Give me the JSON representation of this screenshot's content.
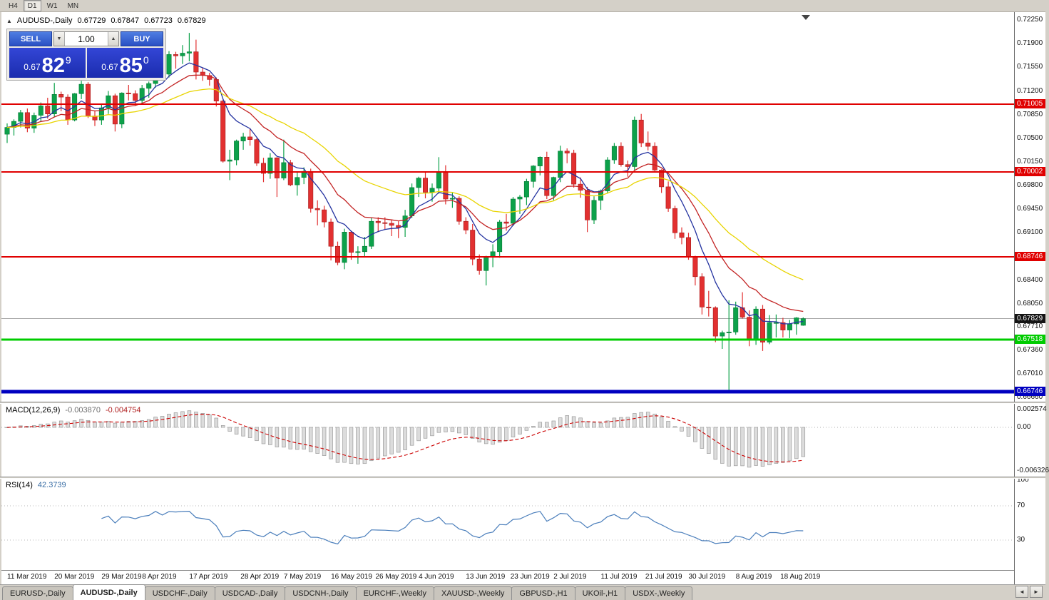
{
  "toolbar": {
    "periods": [
      {
        "label": "H4",
        "active": false
      },
      {
        "label": "D1",
        "active": true
      },
      {
        "label": "W1",
        "active": false
      },
      {
        "label": "MN",
        "active": false
      }
    ]
  },
  "chart_header": {
    "collapse_arrow": "▲",
    "title": "AUDUSD-,Daily",
    "open": "0.67729",
    "high": "0.67847",
    "low": "0.67723",
    "close": "0.67829"
  },
  "trade_panel": {
    "sell_label": "SELL",
    "buy_label": "BUY",
    "volume": "1.00",
    "icons": {
      "up": "▲",
      "down": "▼"
    },
    "sell_price_prefix": "0.67",
    "sell_price_big": "82",
    "sell_price_sup": "9",
    "buy_price_prefix": "0.67",
    "buy_price_big": "85",
    "buy_price_sup": "0"
  },
  "chart_data": {
    "type": "candlestick",
    "symbol": "AUDUSD-",
    "timeframe": "Daily",
    "colors": {
      "up": "#0ca14a",
      "down": "#e23030",
      "up_border": "#077a36",
      "down_border": "#a31c1c",
      "background": "#ffffff"
    },
    "price_axis_labels": [
      "0.72250",
      "0.71900",
      "0.71550",
      "0.71200",
      "0.70850",
      "0.70500",
      "0.70150",
      "0.69800",
      "0.69450",
      "0.69100",
      "0.68400",
      "0.68050",
      "0.67710",
      "0.67360",
      "0.67010",
      "0.66660"
    ],
    "horizontal_lines": [
      {
        "price": 0.71005,
        "label": "0.71005",
        "color": "#e00000",
        "thickness": 2
      },
      {
        "price": 0.70002,
        "label": "0.70002",
        "color": "#e00000",
        "thickness": 2
      },
      {
        "price": 0.68746,
        "label": "0.68746",
        "color": "#e00000",
        "thickness": 2
      },
      {
        "price": 0.67518,
        "label": "0.67518",
        "color": "#00cc00",
        "thickness": 3
      },
      {
        "price": 0.66746,
        "label": "0.66746",
        "color": "#0000c0",
        "thickness": 5
      }
    ],
    "bid_price": {
      "value": 0.67829,
      "label": "0.67829"
    },
    "moving_averages": [
      {
        "method": "ema",
        "period": 7,
        "color": "#2433a0"
      },
      {
        "method": "ema",
        "period": 14,
        "color": "#c22222"
      },
      {
        "method": "ema",
        "period": 30,
        "color": "#e8d400"
      }
    ],
    "date_labels": [
      {
        "text": "11 Mar 2019",
        "bar": 0
      },
      {
        "text": "20 Mar 2019",
        "bar": 7
      },
      {
        "text": "29 Mar 2019",
        "bar": 14
      },
      {
        "text": "8 Apr 2019",
        "bar": 20
      },
      {
        "text": "17 Apr 2019",
        "bar": 27
      },
      {
        "text": "28 Apr 2019",
        "bar": 34.6
      },
      {
        "text": "7 May 2019",
        "bar": 41
      },
      {
        "text": "16 May 2019",
        "bar": 48
      },
      {
        "text": "26 May 2019",
        "bar": 54.6
      },
      {
        "text": "4 Jun 2019",
        "bar": 61
      },
      {
        "text": "13 Jun 2019",
        "bar": 68
      },
      {
        "text": "23 Jun 2019",
        "bar": 74.6
      },
      {
        "text": "2 Jul 2019",
        "bar": 81
      },
      {
        "text": "11 Jul 2019",
        "bar": 88
      },
      {
        "text": "21 Jul 2019",
        "bar": 94.6
      },
      {
        "text": "30 Jul 2019",
        "bar": 101
      },
      {
        "text": "8 Aug 2019",
        "bar": 108
      },
      {
        "text": "18 Aug 2019",
        "bar": 114.6
      }
    ],
    "candles": [
      [
        0.7056,
        0.7072,
        0.7043,
        0.7066
      ],
      [
        0.7066,
        0.7078,
        0.7054,
        0.7075
      ],
      [
        0.7075,
        0.7092,
        0.7066,
        0.7088
      ],
      [
        0.7088,
        0.7094,
        0.7059,
        0.7065
      ],
      [
        0.7065,
        0.7088,
        0.7058,
        0.7084
      ],
      [
        0.7084,
        0.7103,
        0.7075,
        0.7098
      ],
      [
        0.7098,
        0.711,
        0.7079,
        0.7086
      ],
      [
        0.7086,
        0.7132,
        0.7082,
        0.7115
      ],
      [
        0.7115,
        0.7119,
        0.709,
        0.7111
      ],
      [
        0.7111,
        0.7115,
        0.707,
        0.7077
      ],
      [
        0.7077,
        0.7117,
        0.7075,
        0.7116
      ],
      [
        0.7116,
        0.7135,
        0.7108,
        0.713
      ],
      [
        0.713,
        0.7133,
        0.708,
        0.7083
      ],
      [
        0.7083,
        0.709,
        0.7068,
        0.7077
      ],
      [
        0.7077,
        0.71,
        0.707,
        0.7095
      ],
      [
        0.7095,
        0.712,
        0.7086,
        0.7113
      ],
      [
        0.7113,
        0.7116,
        0.706,
        0.7071
      ],
      [
        0.7071,
        0.7118,
        0.7065,
        0.7117
      ],
      [
        0.7117,
        0.7129,
        0.7106,
        0.7116
      ],
      [
        0.7116,
        0.7121,
        0.7098,
        0.7106
      ],
      [
        0.7106,
        0.7129,
        0.7101,
        0.7124
      ],
      [
        0.7124,
        0.7134,
        0.711,
        0.7131
      ],
      [
        0.7131,
        0.7168,
        0.7125,
        0.7164
      ],
      [
        0.7164,
        0.7174,
        0.7138,
        0.7145
      ],
      [
        0.7145,
        0.7179,
        0.714,
        0.7174
      ],
      [
        0.7174,
        0.7178,
        0.7153,
        0.7172
      ],
      [
        0.7172,
        0.7188,
        0.716,
        0.7176
      ],
      [
        0.7176,
        0.7206,
        0.7164,
        0.7178
      ],
      [
        0.7178,
        0.7196,
        0.7137,
        0.7148
      ],
      [
        0.7148,
        0.7154,
        0.7135,
        0.7143
      ],
      [
        0.7143,
        0.7147,
        0.7128,
        0.7137
      ],
      [
        0.7137,
        0.714,
        0.7097,
        0.7105
      ],
      [
        0.7105,
        0.7107,
        0.7014,
        0.7016
      ],
      [
        0.7016,
        0.7033,
        0.6988,
        0.7018
      ],
      [
        0.7018,
        0.7048,
        0.701,
        0.7046
      ],
      [
        0.7046,
        0.7058,
        0.7033,
        0.7052
      ],
      [
        0.7052,
        0.7064,
        0.7039,
        0.7048
      ],
      [
        0.7048,
        0.705,
        0.7009,
        0.7013
      ],
      [
        0.7013,
        0.7021,
        0.6985,
        0.6998
      ],
      [
        0.6998,
        0.7028,
        0.699,
        0.7021
      ],
      [
        0.7021,
        0.7022,
        0.6963,
        0.6991
      ],
      [
        0.6991,
        0.7048,
        0.6988,
        0.7014
      ],
      [
        0.7014,
        0.7018,
        0.6979,
        0.6981
      ],
      [
        0.6981,
        0.7,
        0.6965,
        0.6992
      ],
      [
        0.6992,
        0.7007,
        0.6982,
        0.7001
      ],
      [
        0.7001,
        0.7005,
        0.694,
        0.6946
      ],
      [
        0.6946,
        0.6958,
        0.6921,
        0.6944
      ],
      [
        0.6944,
        0.695,
        0.6918,
        0.6926
      ],
      [
        0.6926,
        0.6931,
        0.6869,
        0.689
      ],
      [
        0.689,
        0.6897,
        0.6862,
        0.6866
      ],
      [
        0.6866,
        0.6916,
        0.6856,
        0.6911
      ],
      [
        0.6911,
        0.6913,
        0.687,
        0.6881
      ],
      [
        0.6881,
        0.689,
        0.6864,
        0.6882
      ],
      [
        0.6882,
        0.6904,
        0.6875,
        0.689
      ],
      [
        0.689,
        0.6932,
        0.6886,
        0.6927
      ],
      [
        0.6927,
        0.6933,
        0.6911,
        0.6925
      ],
      [
        0.6925,
        0.6933,
        0.6915,
        0.6924
      ],
      [
        0.6924,
        0.6929,
        0.6905,
        0.6921
      ],
      [
        0.6921,
        0.6927,
        0.6902,
        0.6918
      ],
      [
        0.6918,
        0.6944,
        0.6904,
        0.6935
      ],
      [
        0.6935,
        0.6983,
        0.6932,
        0.6977
      ],
      [
        0.6977,
        0.6993,
        0.6963,
        0.6991
      ],
      [
        0.6991,
        0.7,
        0.6961,
        0.697
      ],
      [
        0.697,
        0.6983,
        0.6956,
        0.6976
      ],
      [
        0.6976,
        0.7022,
        0.6968,
        0.7
      ],
      [
        0.7,
        0.701,
        0.6952,
        0.696
      ],
      [
        0.696,
        0.697,
        0.6947,
        0.6961
      ],
      [
        0.6961,
        0.6964,
        0.6922,
        0.6927
      ],
      [
        0.6927,
        0.6933,
        0.6908,
        0.6914
      ],
      [
        0.6914,
        0.6923,
        0.6862,
        0.6871
      ],
      [
        0.6871,
        0.6878,
        0.6848,
        0.6854
      ],
      [
        0.6854,
        0.6876,
        0.6832,
        0.6875
      ],
      [
        0.6875,
        0.6893,
        0.6859,
        0.6882
      ],
      [
        0.6882,
        0.6929,
        0.6873,
        0.6926
      ],
      [
        0.6926,
        0.6938,
        0.6913,
        0.6924
      ],
      [
        0.6924,
        0.6963,
        0.692,
        0.696
      ],
      [
        0.696,
        0.6966,
        0.6938,
        0.6963
      ],
      [
        0.6963,
        0.699,
        0.6951,
        0.6986
      ],
      [
        0.6986,
        0.701,
        0.6977,
        0.7009
      ],
      [
        0.7009,
        0.7023,
        0.6995,
        0.7022
      ],
      [
        0.7022,
        0.703,
        0.696,
        0.6965
      ],
      [
        0.6965,
        0.6993,
        0.6958,
        0.6992
      ],
      [
        0.6992,
        0.7039,
        0.6985,
        0.7031
      ],
      [
        0.7031,
        0.7035,
        0.7013,
        0.7028
      ],
      [
        0.7028,
        0.7033,
        0.6977,
        0.6982
      ],
      [
        0.6982,
        0.6992,
        0.6962,
        0.6973
      ],
      [
        0.6973,
        0.6978,
        0.6911,
        0.6929
      ],
      [
        0.6929,
        0.6964,
        0.6923,
        0.6958
      ],
      [
        0.6958,
        0.6974,
        0.6944,
        0.6972
      ],
      [
        0.6972,
        0.7022,
        0.6968,
        0.7018
      ],
      [
        0.7018,
        0.7043,
        0.7012,
        0.7038
      ],
      [
        0.7038,
        0.7044,
        0.7008,
        0.7011
      ],
      [
        0.7011,
        0.7017,
        0.6993,
        0.7008
      ],
      [
        0.7008,
        0.7082,
        0.7003,
        0.7077
      ],
      [
        0.7077,
        0.7086,
        0.7037,
        0.7043
      ],
      [
        0.7043,
        0.706,
        0.7032,
        0.7038
      ],
      [
        0.7038,
        0.7044,
        0.7,
        0.7003
      ],
      [
        0.7003,
        0.7004,
        0.6969,
        0.6978
      ],
      [
        0.6978,
        0.6986,
        0.6941,
        0.6946
      ],
      [
        0.6946,
        0.695,
        0.6901,
        0.691
      ],
      [
        0.691,
        0.6918,
        0.6893,
        0.6903
      ],
      [
        0.6903,
        0.691,
        0.687,
        0.6874
      ],
      [
        0.6874,
        0.6876,
        0.6832,
        0.6845
      ],
      [
        0.6845,
        0.685,
        0.6789,
        0.68
      ],
      [
        0.68,
        0.6824,
        0.6786,
        0.6799
      ],
      [
        0.6799,
        0.6801,
        0.6748,
        0.6757
      ],
      [
        0.6757,
        0.6765,
        0.6738,
        0.6762
      ],
      [
        0.6762,
        0.681,
        0.6677,
        0.6763
      ],
      [
        0.6763,
        0.6808,
        0.6759,
        0.6799
      ],
      [
        0.6799,
        0.6822,
        0.6783,
        0.6785
      ],
      [
        0.6785,
        0.6795,
        0.6742,
        0.6753
      ],
      [
        0.6753,
        0.6801,
        0.6744,
        0.6797
      ],
      [
        0.6797,
        0.6803,
        0.6735,
        0.6748
      ],
      [
        0.6748,
        0.6788,
        0.6745,
        0.6777
      ],
      [
        0.6777,
        0.6789,
        0.6755,
        0.6777
      ],
      [
        0.6777,
        0.6784,
        0.6755,
        0.6766
      ],
      [
        0.6766,
        0.6781,
        0.6754,
        0.6775
      ],
      [
        0.6775,
        0.6785,
        0.6759,
        0.6784
      ],
      [
        0.67729,
        0.67847,
        0.67723,
        0.67829
      ]
    ]
  },
  "macd": {
    "name": "MACD(12,26,9)",
    "value_main": "-0.003870",
    "value_signal": "-0.004754",
    "fast": 12,
    "slow": 26,
    "signal": 9,
    "axis_labels": [
      "0.002574",
      "0.00",
      "-0.006326"
    ]
  },
  "rsi": {
    "name": "RSI(14)",
    "value": "42.3739",
    "period": 14,
    "levels": [
      70,
      30
    ],
    "axis_labels": [
      "100",
      "70",
      "30"
    ]
  },
  "tabs": {
    "scroll_left": "◄",
    "scroll_right": "►",
    "items": [
      {
        "label": "EURUSD-,Daily",
        "active": false
      },
      {
        "label": "AUDUSD-,Daily",
        "active": true
      },
      {
        "label": "USDCHF-,Daily",
        "active": false
      },
      {
        "label": "USDCAD-,Daily",
        "active": false
      },
      {
        "label": "USDCNH-,Daily",
        "active": false
      },
      {
        "label": "EURCHF-,Weekly",
        "active": false
      },
      {
        "label": "XAUUSD-,Weekly",
        "active": false
      },
      {
        "label": "GBPUSD-,H1",
        "active": false
      },
      {
        "label": "UKOil-,H1",
        "active": false
      },
      {
        "label": "USDX-,Weekly",
        "active": false
      }
    ]
  }
}
